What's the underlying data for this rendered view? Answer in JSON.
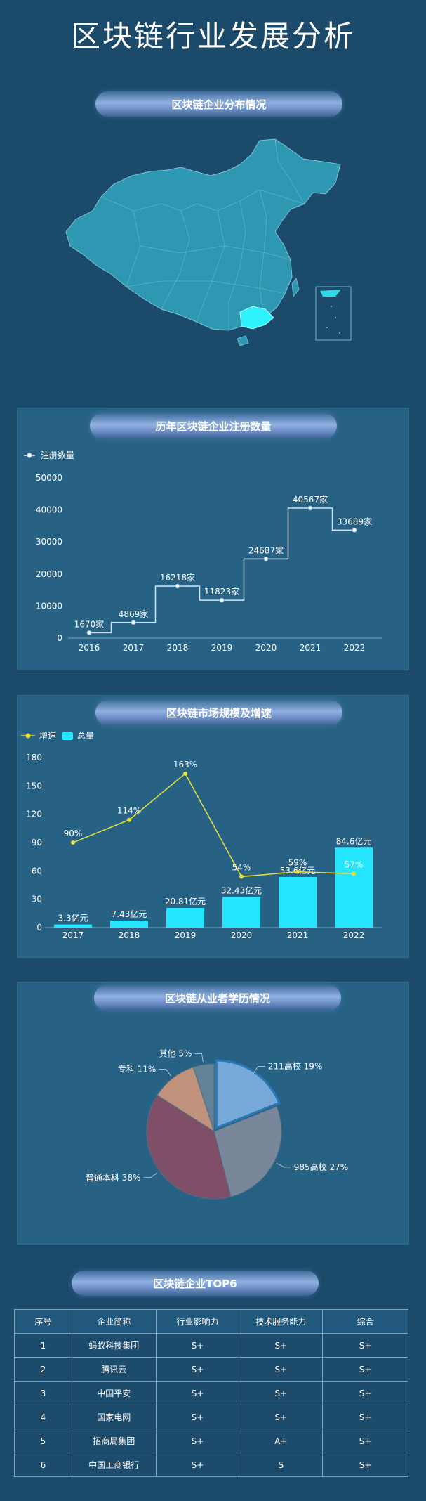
{
  "page": {
    "title": "区块链行业发展分析"
  },
  "sections": {
    "map_title": "区块链企业分布情况",
    "register_title": "历年区块链企业注册数量",
    "market_title": "区块链市场规模及增速",
    "edu_title": "区块链从业者学历情况",
    "top6_title": "区块链企业TOP6"
  },
  "colors": {
    "background": "#1b4a6b",
    "panel": "#276285",
    "accent": "#26e6ff",
    "line_yellow": "#e8e03a"
  },
  "chart_data": [
    {
      "type": "line",
      "step": true,
      "series": [
        {
          "name": "注册数量",
          "values": [
            1670,
            4869,
            16218,
            11823,
            24687,
            40567,
            33689
          ]
        }
      ],
      "categories": [
        "2016",
        "2017",
        "2018",
        "2019",
        "2020",
        "2021",
        "2022"
      ],
      "data_labels": [
        "1670家",
        "4869家",
        "16218家",
        "11823家",
        "24687家",
        "40567家",
        "33689家"
      ],
      "ylim": [
        0,
        50000
      ],
      "yticks": [
        "0",
        "10000",
        "20000",
        "30000",
        "40000",
        "50000"
      ],
      "legend": "top-left"
    },
    {
      "type": "bar",
      "categories": [
        "2017",
        "2018",
        "2019",
        "2020",
        "2021",
        "2022"
      ],
      "series": [
        {
          "name": "增速",
          "type": "line",
          "values": [
            90,
            114,
            163,
            54,
            59,
            57
          ],
          "labels": [
            "90%",
            "114%",
            "163%",
            "54%",
            "59%",
            "57%"
          ]
        },
        {
          "name": "总量",
          "type": "bar",
          "values": [
            3.3,
            7.43,
            20.81,
            32.43,
            53.6,
            84.6
          ],
          "labels": [
            "3.3亿元",
            "7.43亿元",
            "20.81亿元",
            "32.43亿元",
            "53.6亿元",
            "84.6亿元"
          ]
        }
      ],
      "ylim": [
        0,
        180
      ],
      "yticks": [
        "0",
        "30",
        "60",
        "90",
        "120",
        "150",
        "180"
      ],
      "legend": "top-left"
    },
    {
      "type": "pie",
      "slices": [
        {
          "label": "211高校",
          "value": 19,
          "text": "211高校 19%",
          "color": "#76a8d8"
        },
        {
          "label": "985高校",
          "value": 27,
          "text": "985高校 27%",
          "color": "#7a8699"
        },
        {
          "label": "普通本科",
          "value": 38,
          "text": "普通本科 38%",
          "color": "#7e4f66"
        },
        {
          "label": "专科",
          "value": 11,
          "text": "专科 11%",
          "color": "#c0917b"
        },
        {
          "label": "其他",
          "value": 5,
          "text": "其他 5%",
          "color": "#648297"
        }
      ]
    }
  ],
  "top6_table": {
    "headers": [
      "序号",
      "企业简称",
      "行业影响力",
      "技术服务能力",
      "综合"
    ],
    "rows": [
      [
        "1",
        "蚂蚁科技集团",
        "S+",
        "S+",
        "S+"
      ],
      [
        "2",
        "腾讯云",
        "S+",
        "S+",
        "S+"
      ],
      [
        "3",
        "中国平安",
        "S+",
        "S+",
        "S+"
      ],
      [
        "4",
        "国家电网",
        "S+",
        "S+",
        "S+"
      ],
      [
        "5",
        "招商局集团",
        "S+",
        "A+",
        "S+"
      ],
      [
        "6",
        "中国工商银行",
        "S+",
        "S",
        "S+"
      ]
    ]
  }
}
